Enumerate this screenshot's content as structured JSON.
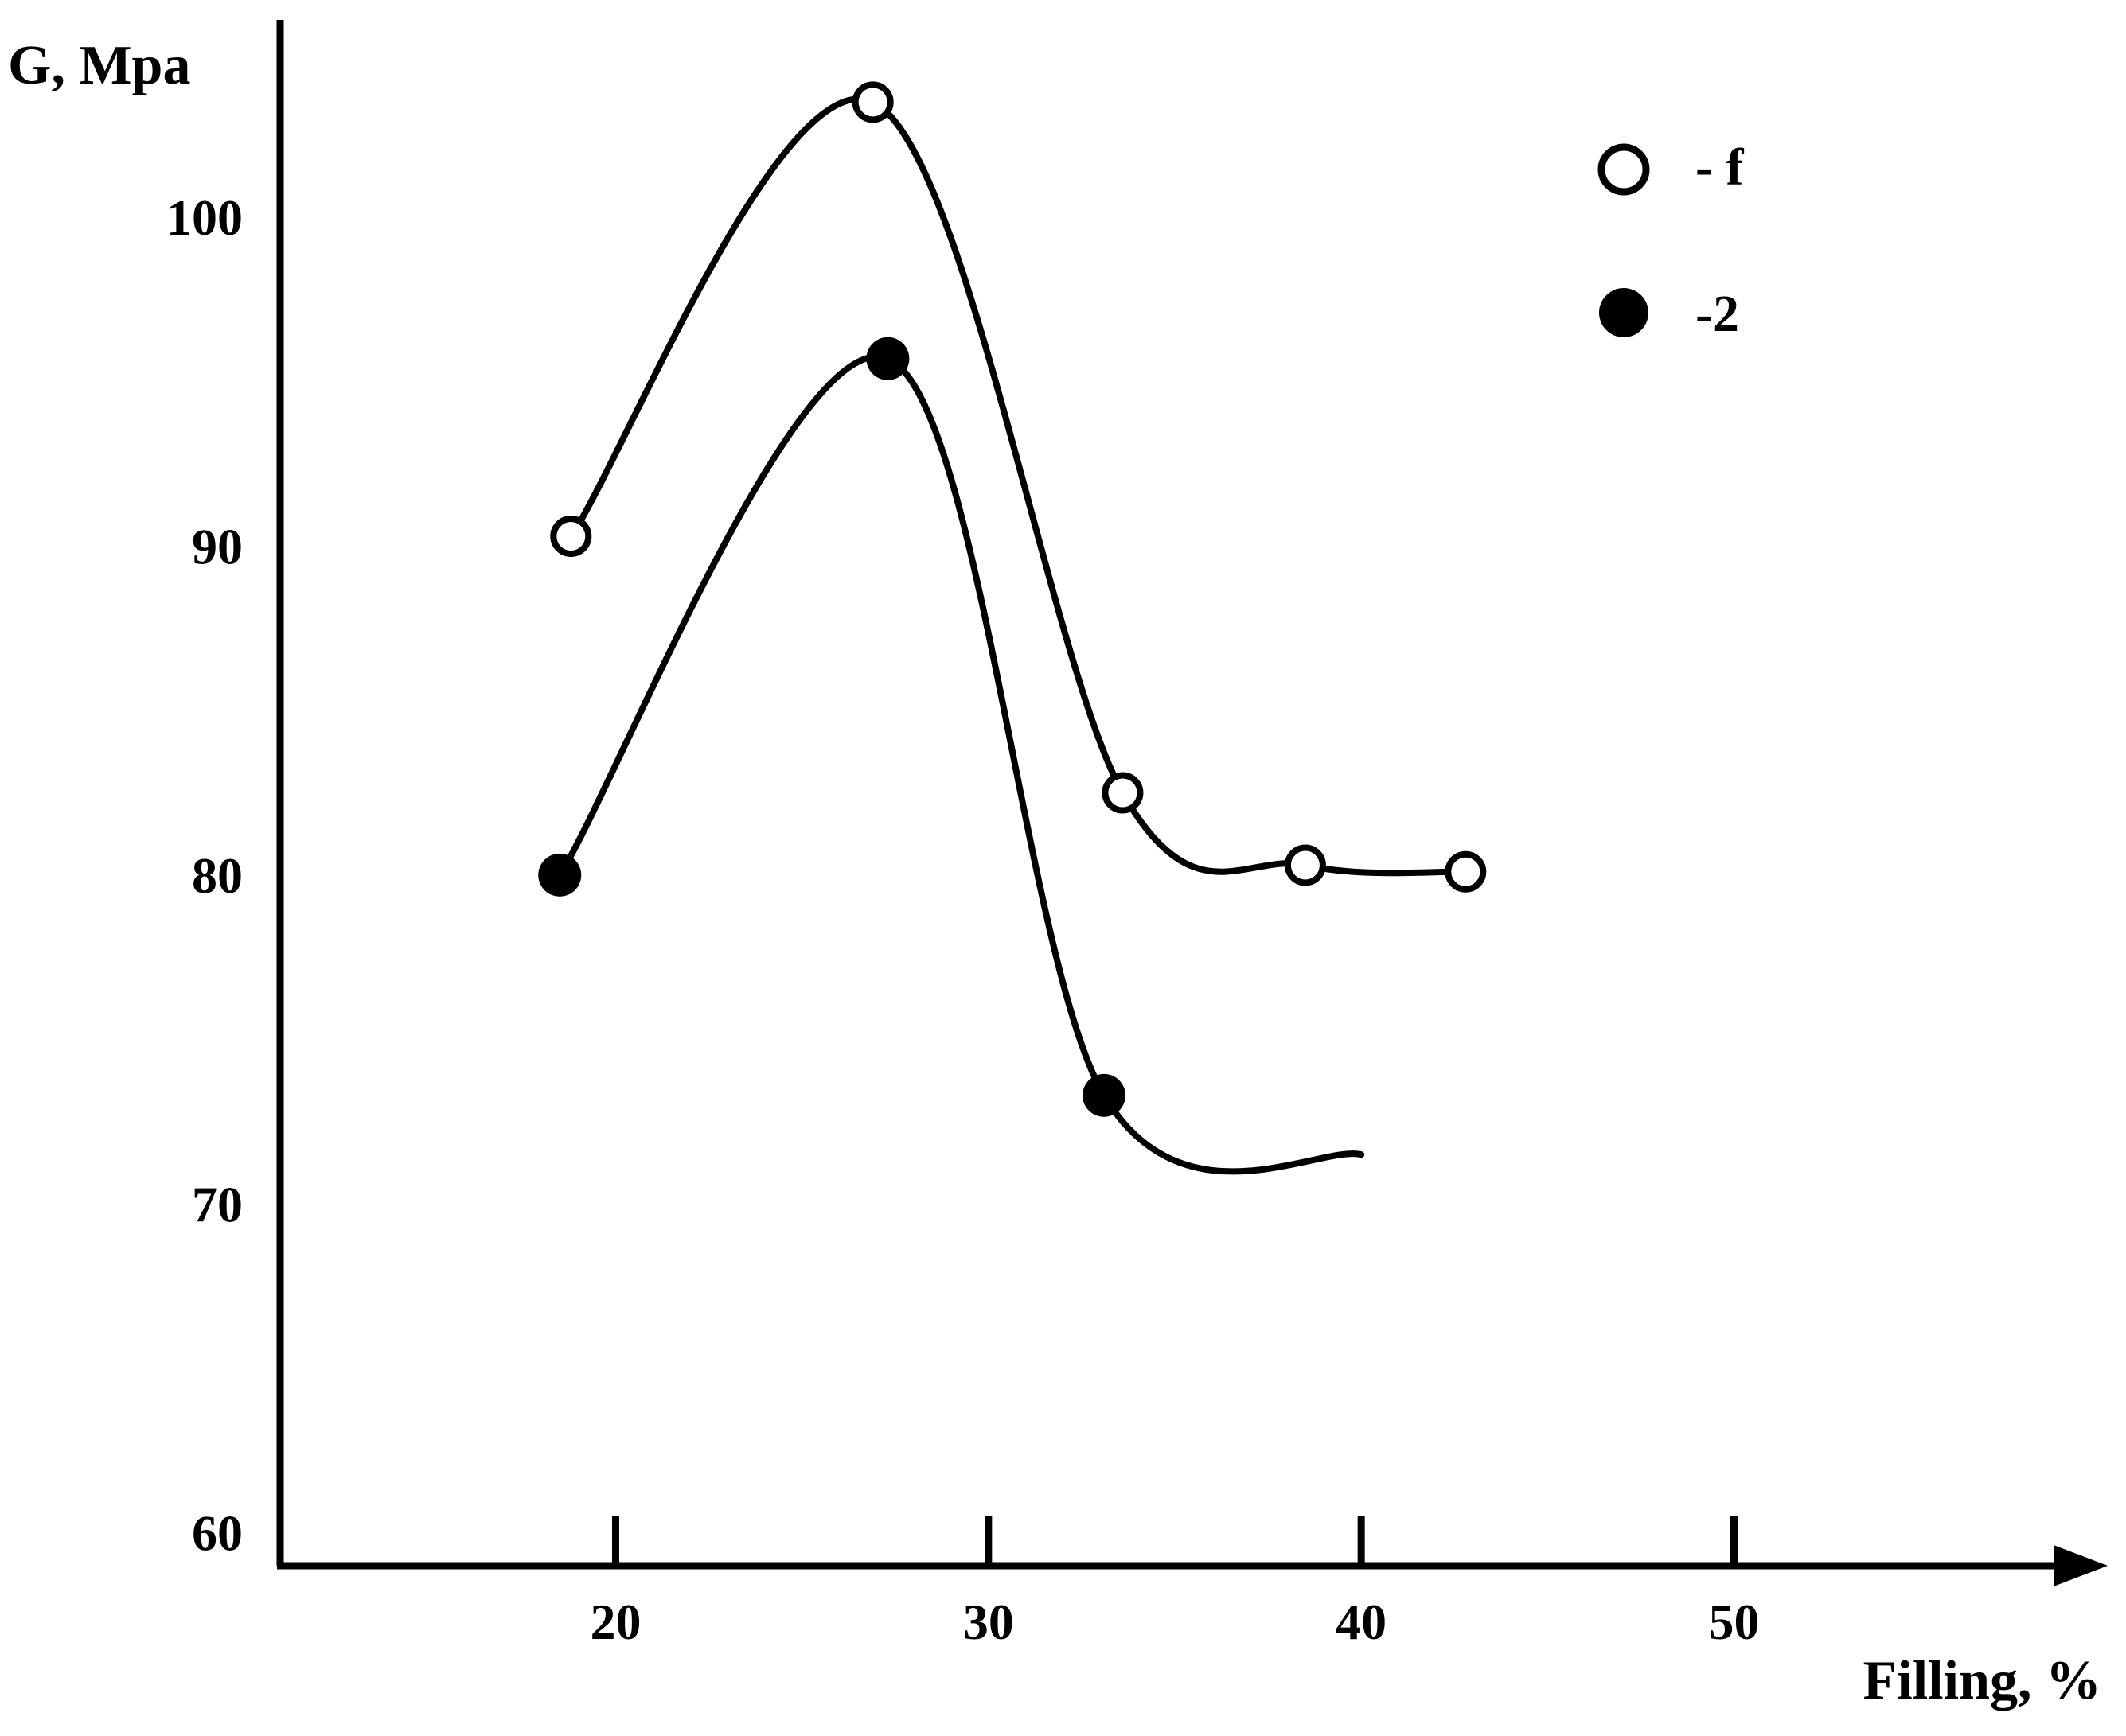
{
  "chart_data": {
    "type": "line",
    "title": "",
    "xlabel": "Filling, %",
    "ylabel": "G, Mpa",
    "xlim": [
      11,
      59
    ],
    "ylim": [
      59,
      106
    ],
    "xticks": [
      20,
      30,
      40,
      50
    ],
    "yticks": [
      60,
      70,
      80,
      90,
      100
    ],
    "legend_position": "top-right",
    "series": [
      {
        "name": "- f",
        "marker": "open-circle",
        "points": [
          {
            "x": 18.8,
            "y": 90.3
          },
          {
            "x": 26.9,
            "y": 103.5
          },
          {
            "x": 33.6,
            "y": 82.5
          },
          {
            "x": 38.5,
            "y": 80.3
          },
          {
            "x": 42.8,
            "y": 80.1
          }
        ],
        "curve_end": null
      },
      {
        "name": "-2",
        "marker": "filled-circle",
        "points": [
          {
            "x": 18.5,
            "y": 80.0
          },
          {
            "x": 27.3,
            "y": 95.7
          },
          {
            "x": 33.1,
            "y": 73.3
          }
        ],
        "curve_end": {
          "x": 40.0,
          "y": 71.5
        }
      }
    ]
  }
}
